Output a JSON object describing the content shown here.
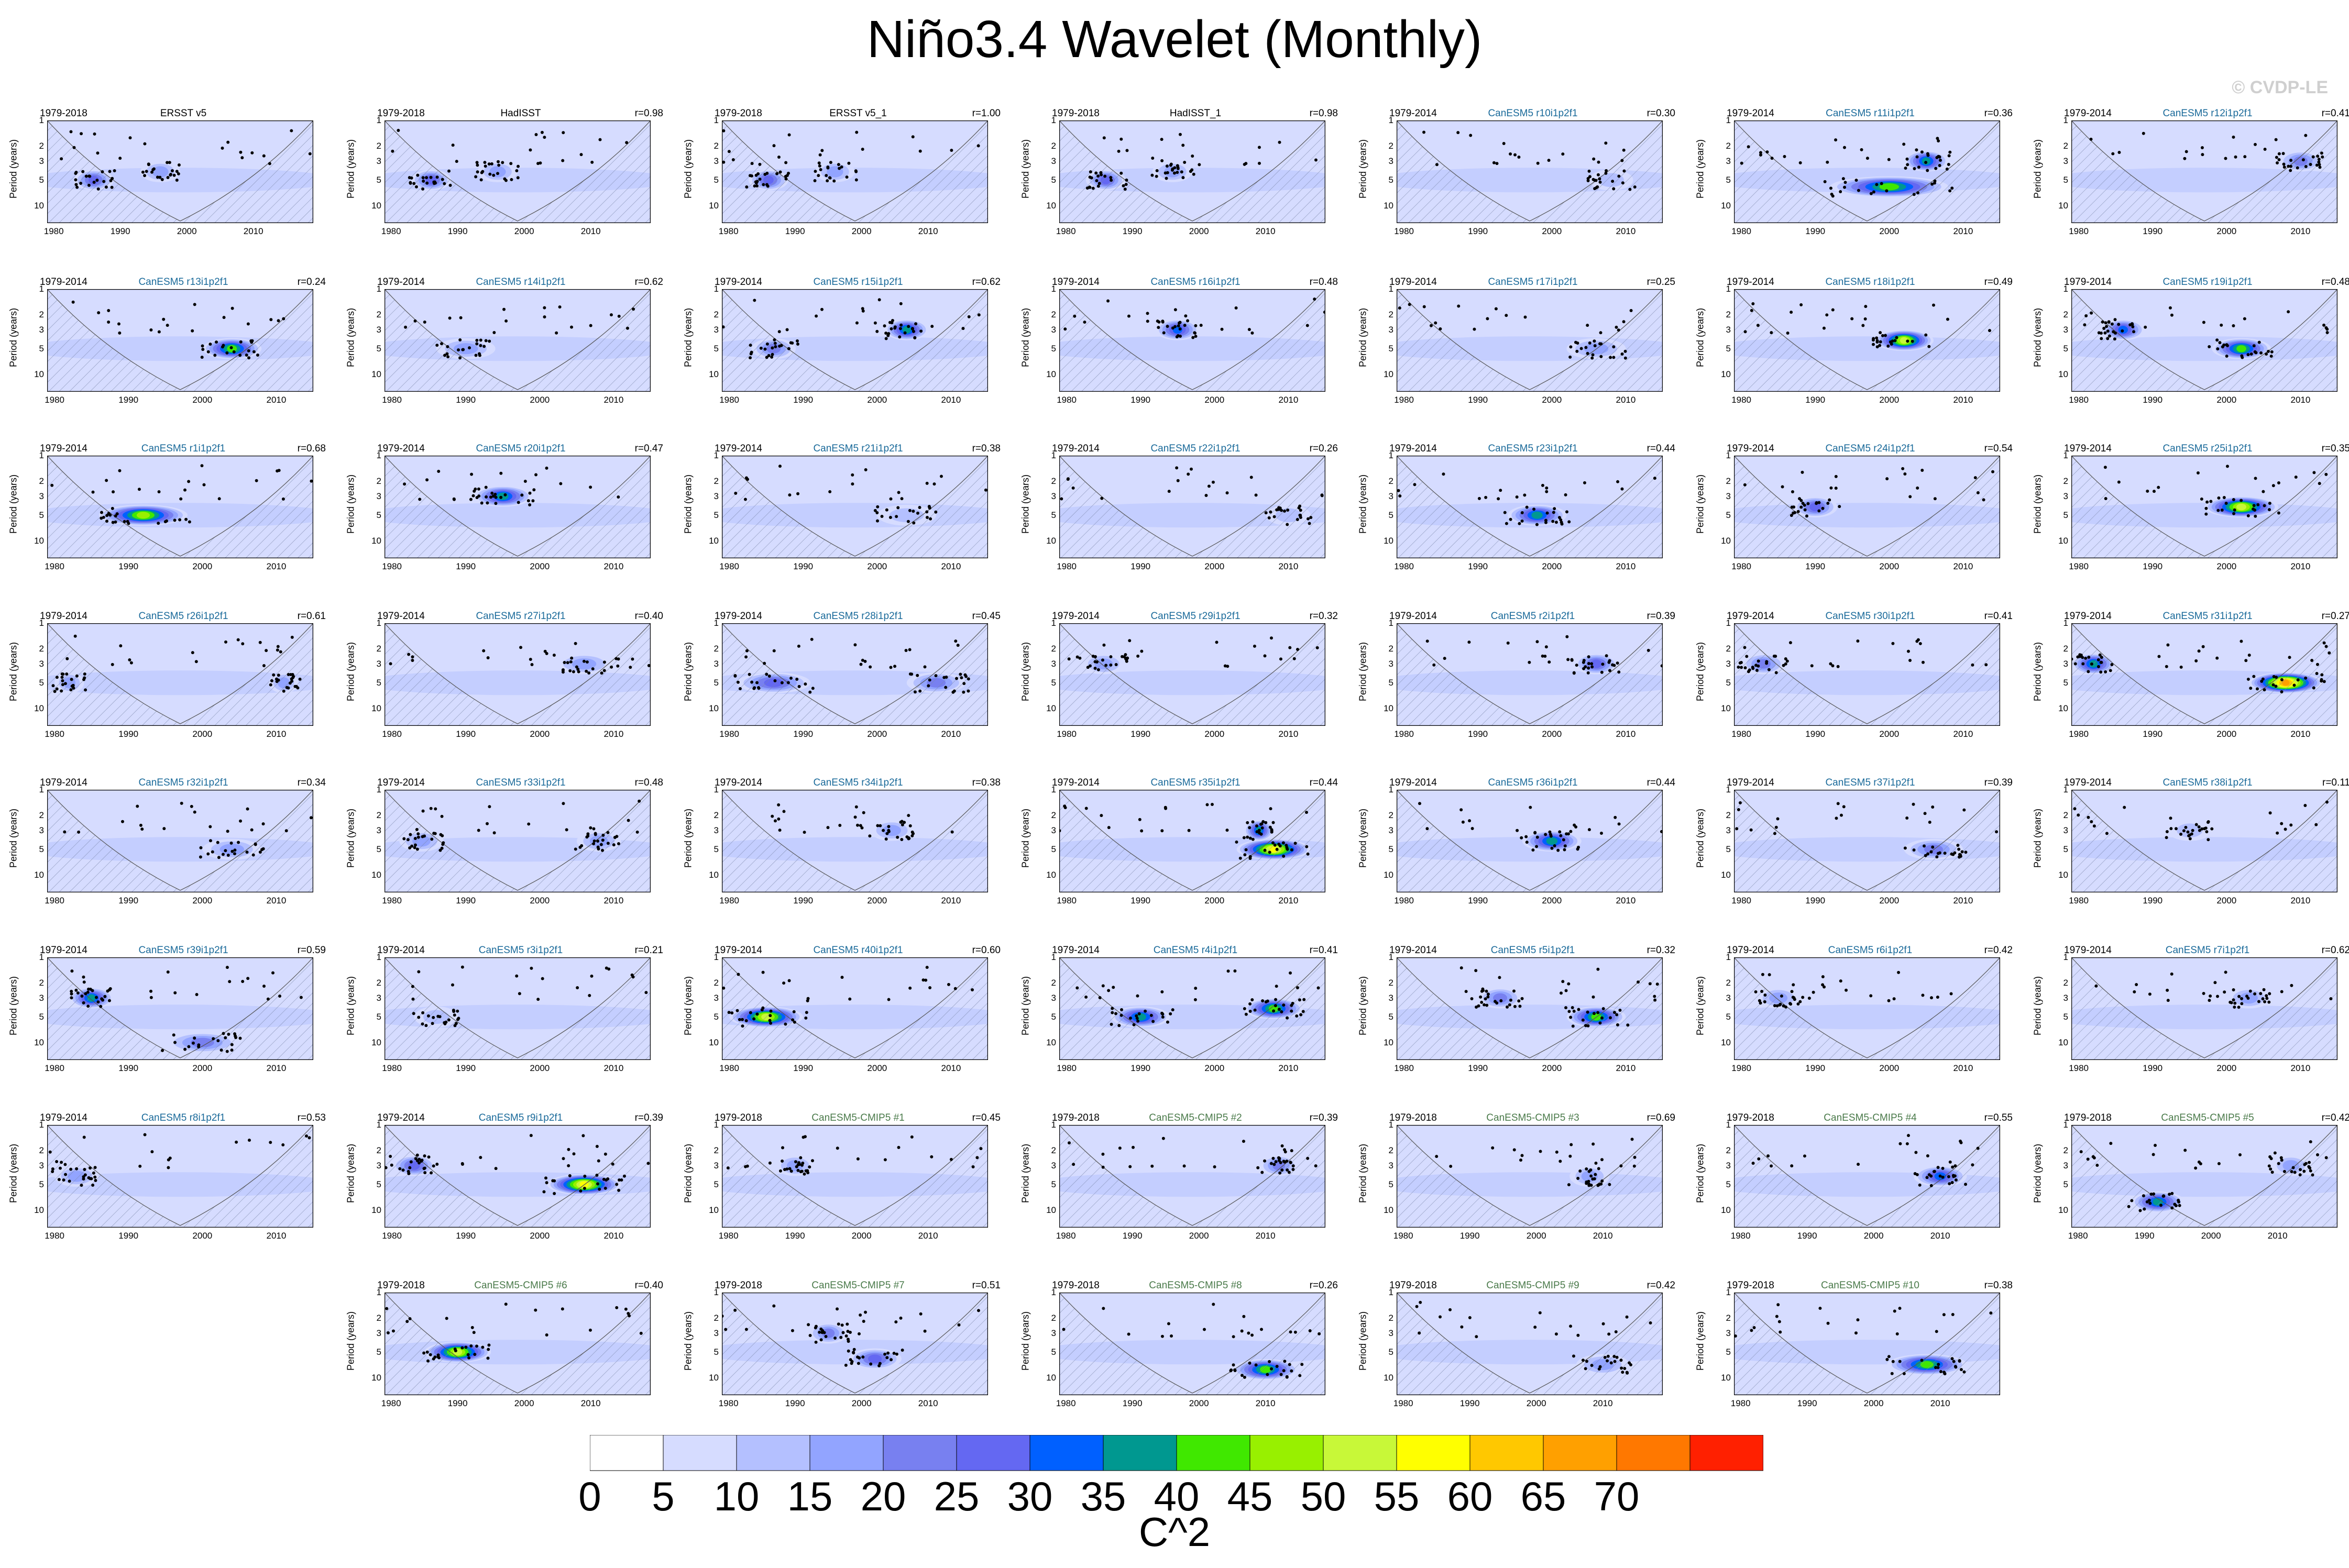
{
  "title": "Niño3.4 Wavelet (Monthly)",
  "watermark": "© CVDP-LE",
  "chart_data": {
    "type": "heatmap",
    "ylabel": "Period (years)",
    "yticks": [
      "1",
      "2",
      "3",
      "5",
      "10"
    ],
    "xticks": [
      "1980",
      "1990",
      "2000",
      "2010"
    ],
    "colorbar": {
      "label": "C^2",
      "ticks": [
        "0",
        "5",
        "10",
        "15",
        "20",
        "25",
        "30",
        "35",
        "40",
        "45",
        "50",
        "55",
        "60",
        "65",
        "70"
      ],
      "colors": [
        "#ffffff",
        "#d6dcff",
        "#b4c0ff",
        "#92a4ff",
        "#7880f0",
        "#6468f2",
        "#0060ff",
        "#009890",
        "#40e800",
        "#98f000",
        "#c8f838",
        "#ffff00",
        "#ffc800",
        "#ffa000",
        "#ff7800",
        "#ff2000"
      ]
    },
    "panels": [
      {
        "period": "1979-2018",
        "model": "ERSST v5",
        "r": "",
        "end": 2018,
        "blobs": [
          [
            1986,
            5,
            3,
            25
          ],
          [
            1996,
            4,
            3,
            15
          ]
        ]
      },
      {
        "period": "1979-2018",
        "model": "HadISST",
        "r": "r=0.98",
        "end": 2018,
        "blobs": [
          [
            1986,
            5,
            3,
            25
          ],
          [
            1996,
            4,
            3,
            15
          ]
        ]
      },
      {
        "period": "1979-2018",
        "model": "ERSST v5_1",
        "r": "r=1.00",
        "end": 2018,
        "blobs": [
          [
            1986,
            5,
            3,
            25
          ],
          [
            1996,
            4,
            3,
            15
          ]
        ]
      },
      {
        "period": "1979-2018",
        "model": "HadISST_1",
        "r": "r=0.98",
        "end": 2018,
        "blobs": [
          [
            1986,
            5,
            3,
            25
          ],
          [
            1996,
            4,
            3,
            15
          ]
        ]
      },
      {
        "period": "1979-2014",
        "model": "CanESM5 r10i1p2f1",
        "r": "r=0.30",
        "end": 2014,
        "blobs": [
          [
            2008,
            5,
            3,
            10
          ]
        ]
      },
      {
        "period": "1979-2014",
        "model": "CanESM5 r11i1p2f1",
        "r": "r=0.36",
        "end": 2014,
        "blobs": [
          [
            2000,
            6,
            8,
            40
          ],
          [
            2005,
            3,
            3,
            35
          ]
        ]
      },
      {
        "period": "1979-2014",
        "model": "CanESM5 r12i1p2f1",
        "r": "r=0.41",
        "end": 2014,
        "blobs": [
          [
            2010,
            3,
            3,
            20
          ]
        ]
      },
      {
        "period": "1979-2014",
        "model": "CanESM5 r13i1p2f1",
        "r": "r=0.24",
        "end": 2014,
        "blobs": [
          [
            2004,
            5,
            4,
            40
          ]
        ]
      },
      {
        "period": "1979-2014",
        "model": "CanESM5 r14i1p2f1",
        "r": "r=0.62",
        "end": 2014,
        "blobs": [
          [
            1990,
            5,
            4,
            15
          ]
        ]
      },
      {
        "period": "1979-2014",
        "model": "CanESM5 r15i1p2f1",
        "r": "r=0.62",
        "end": 2014,
        "blobs": [
          [
            2004,
            3,
            3,
            35
          ],
          [
            1986,
            5,
            3,
            20
          ]
        ]
      },
      {
        "period": "1979-2014",
        "model": "CanESM5 r16i1p2f1",
        "r": "r=0.48",
        "end": 2014,
        "blobs": [
          [
            1995,
            3,
            3,
            30
          ]
        ]
      },
      {
        "period": "1979-2014",
        "model": "CanESM5 r17i1p2f1",
        "r": "r=0.25",
        "end": 2014,
        "blobs": [
          [
            2006,
            5,
            4,
            15
          ]
        ]
      },
      {
        "period": "1979-2014",
        "model": "CanESM5 r18i1p2f1",
        "r": "r=0.49",
        "end": 2014,
        "blobs": [
          [
            2002,
            4,
            4,
            50
          ]
        ]
      },
      {
        "period": "1979-2014",
        "model": "CanESM5 r19i1p2f1",
        "r": "r=0.48",
        "end": 2014,
        "blobs": [
          [
            1986,
            3,
            3,
            30
          ],
          [
            2002,
            5,
            4,
            40
          ]
        ]
      },
      {
        "period": "1979-2014",
        "model": "CanESM5 r1i1p2f1",
        "r": "r=0.68",
        "end": 2014,
        "blobs": [
          [
            1992,
            5,
            6,
            45
          ]
        ]
      },
      {
        "period": "1979-2014",
        "model": "CanESM5 r20i1p2f1",
        "r": "r=0.47",
        "end": 2014,
        "blobs": [
          [
            1995,
            3,
            4,
            35
          ]
        ]
      },
      {
        "period": "1979-2014",
        "model": "CanESM5 r21i1p2f1",
        "r": "r=0.38",
        "end": 2014,
        "blobs": [
          [
            2004,
            5,
            4,
            10
          ]
        ]
      },
      {
        "period": "1979-2014",
        "model": "CanESM5 r22i1p2f1",
        "r": "r=0.26",
        "end": 2014,
        "blobs": [
          [
            2010,
            5,
            3,
            10
          ]
        ]
      },
      {
        "period": "1979-2014",
        "model": "CanESM5 r23i1p2f1",
        "r": "r=0.44",
        "end": 2014,
        "blobs": [
          [
            1998,
            5,
            4,
            35
          ]
        ]
      },
      {
        "period": "1979-2014",
        "model": "CanESM5 r24i1p2f1",
        "r": "r=0.54",
        "end": 2014,
        "blobs": [
          [
            1990,
            4,
            3,
            25
          ]
        ]
      },
      {
        "period": "1979-2014",
        "model": "CanESM5 r25i1p2f1",
        "r": "r=0.35",
        "end": 2014,
        "blobs": [
          [
            2002,
            4,
            5,
            50
          ]
        ]
      },
      {
        "period": "1979-2014",
        "model": "CanESM5 r26i1p2f1",
        "r": "r=0.61",
        "end": 2014,
        "blobs": [
          [
            1982,
            5,
            2,
            15
          ],
          [
            2011,
            5,
            2,
            15
          ]
        ]
      },
      {
        "period": "1979-2014",
        "model": "CanESM5 r27i1p2f1",
        "r": "r=0.40",
        "end": 2014,
        "blobs": [
          [
            2006,
            3,
            4,
            15
          ]
        ]
      },
      {
        "period": "1979-2014",
        "model": "CanESM5 r28i1p2f1",
        "r": "r=0.45",
        "end": 2014,
        "blobs": [
          [
            1986,
            5,
            5,
            25
          ],
          [
            2008,
            5,
            4,
            20
          ]
        ]
      },
      {
        "period": "1979-2014",
        "model": "CanESM5 r29i1p2f1",
        "r": "r=0.32",
        "end": 2014,
        "blobs": [
          [
            1985,
            3,
            3,
            15
          ]
        ]
      },
      {
        "period": "1979-2014",
        "model": "CanESM5 r2i1p2f1",
        "r": "r=0.39",
        "end": 2014,
        "blobs": [
          [
            2006,
            3,
            3,
            25
          ]
        ]
      },
      {
        "period": "1979-2014",
        "model": "CanESM5 r30i1p2f1",
        "r": "r=0.41",
        "end": 2014,
        "blobs": [
          [
            1983,
            3,
            3,
            20
          ]
        ]
      },
      {
        "period": "1979-2014",
        "model": "CanESM5 r31i1p2f1",
        "r": "r=0.27",
        "end": 2014,
        "blobs": [
          [
            2008,
            5,
            5,
            65
          ],
          [
            1982,
            3,
            3,
            35
          ]
        ]
      },
      {
        "period": "1979-2014",
        "model": "CanESM5 r32i1p2f1",
        "r": "r=0.34",
        "end": 2014,
        "blobs": [
          [
            2004,
            5,
            4,
            15
          ]
        ]
      },
      {
        "period": "1979-2014",
        "model": "CanESM5 r33i1p2f1",
        "r": "r=0.48",
        "end": 2014,
        "blobs": [
          [
            1984,
            4,
            3,
            15
          ],
          [
            2008,
            4,
            3,
            15
          ]
        ]
      },
      {
        "period": "1979-2014",
        "model": "CanESM5 r34i1p2f1",
        "r": "r=0.38",
        "end": 2014,
        "blobs": [
          [
            2002,
            3,
            3,
            15
          ]
        ]
      },
      {
        "period": "1979-2014",
        "model": "CanESM5 r35i1p2f1",
        "r": "r=0.44",
        "end": 2014,
        "blobs": [
          [
            2008,
            5,
            5,
            55
          ],
          [
            2006,
            3,
            2,
            35
          ]
        ]
      },
      {
        "period": "1979-2014",
        "model": "CanESM5 r36i1p2f1",
        "r": "r=0.44",
        "end": 2014,
        "blobs": [
          [
            2000,
            4,
            4,
            35
          ]
        ]
      },
      {
        "period": "1979-2014",
        "model": "CanESM5 r37i1p2f1",
        "r": "r=0.39",
        "end": 2014,
        "blobs": [
          [
            2006,
            5,
            4,
            20
          ]
        ]
      },
      {
        "period": "1979-2014",
        "model": "CanESM5 r38i1p2f1",
        "r": "r=0.11",
        "end": 2014,
        "blobs": [
          [
            1995,
            3,
            3,
            10
          ]
        ]
      },
      {
        "period": "1979-2014",
        "model": "CanESM5 r39i1p2f1",
        "r": "r=0.59",
        "end": 2014,
        "blobs": [
          [
            1985,
            3,
            3,
            35
          ],
          [
            2000,
            10,
            5,
            20
          ]
        ]
      },
      {
        "period": "1979-2014",
        "model": "CanESM5 r3i1p2f1",
        "r": "r=0.21",
        "end": 2014,
        "blobs": [
          [
            1986,
            5,
            3,
            10
          ]
        ]
      },
      {
        "period": "1979-2014",
        "model": "CanESM5 r40i1p2f1",
        "r": "r=0.60",
        "end": 2014,
        "blobs": [
          [
            1985,
            5,
            5,
            50
          ]
        ]
      },
      {
        "period": "1979-2014",
        "model": "CanESM5 r4i1p2f1",
        "r": "r=0.41",
        "end": 2014,
        "blobs": [
          [
            1990,
            5,
            4,
            35
          ],
          [
            2008,
            4,
            4,
            40
          ]
        ]
      },
      {
        "period": "1979-2014",
        "model": "CanESM5 r5i1p2f1",
        "r": "r=0.32",
        "end": 2014,
        "blobs": [
          [
            2006,
            5,
            4,
            40
          ],
          [
            1993,
            3,
            3,
            20
          ]
        ]
      },
      {
        "period": "1979-2014",
        "model": "CanESM5 r6i1p2f1",
        "r": "r=0.42",
        "end": 2014,
        "blobs": [
          [
            1985,
            3,
            3,
            15
          ]
        ]
      },
      {
        "period": "1979-2014",
        "model": "CanESM5 r7i1p2f1",
        "r": "r=0.62",
        "end": 2014,
        "blobs": [
          [
            2003,
            3,
            3,
            15
          ]
        ]
      },
      {
        "period": "1979-2014",
        "model": "CanESM5 r8i1p2f1",
        "r": "r=0.53",
        "end": 2014,
        "blobs": [
          [
            1983,
            4,
            3,
            15
          ]
        ]
      },
      {
        "period": "1979-2014",
        "model": "CanESM5 r9i1p2f1",
        "r": "r=0.39",
        "end": 2014,
        "blobs": [
          [
            2006,
            5,
            5,
            55
          ],
          [
            1983,
            3,
            3,
            25
          ]
        ]
      },
      {
        "period": "1979-2018",
        "model": "CanESM5-CMIP5 #1",
        "r": "r=0.45",
        "end": 2018,
        "blobs": [
          [
            1990,
            3,
            3,
            15
          ]
        ]
      },
      {
        "period": "1979-2018",
        "model": "CanESM5-CMIP5 #2",
        "r": "r=0.39",
        "end": 2018,
        "blobs": [
          [
            2012,
            3,
            3,
            20
          ]
        ]
      },
      {
        "period": "1979-2018",
        "model": "CanESM5-CMIP5 #3",
        "r": "r=0.69",
        "end": 2018,
        "blobs": [
          [
            2008,
            4,
            3,
            15
          ]
        ]
      },
      {
        "period": "1979-2018",
        "model": "CanESM5-CMIP5 #4",
        "r": "r=0.55",
        "end": 2018,
        "blobs": [
          [
            2010,
            4,
            4,
            30
          ]
        ]
      },
      {
        "period": "1979-2018",
        "model": "CanESM5-CMIP5 #5",
        "r": "r=0.42",
        "end": 2018,
        "blobs": [
          [
            1992,
            8,
            4,
            35
          ],
          [
            2012,
            3,
            3,
            15
          ]
        ]
      },
      {
        "period": "1979-2018",
        "model": "CanESM5-CMIP5 #6",
        "r": "r=0.40",
        "end": 2018,
        "blobs": [
          [
            1990,
            5,
            5,
            50
          ]
        ]
      },
      {
        "period": "1979-2018",
        "model": "CanESM5-CMIP5 #7",
        "r": "r=0.51",
        "end": 2018,
        "blobs": [
          [
            2002,
            6,
            4,
            25
          ],
          [
            1995,
            3,
            3,
            20
          ]
        ]
      },
      {
        "period": "1979-2018",
        "model": "CanESM5-CMIP5 #8",
        "r": "r=0.26",
        "end": 2018,
        "blobs": [
          [
            2010,
            8,
            5,
            40
          ]
        ]
      },
      {
        "period": "1979-2018",
        "model": "CanESM5-CMIP5 #9",
        "r": "r=0.42",
        "end": 2018,
        "blobs": [
          [
            2010,
            7,
            4,
            15
          ]
        ]
      },
      {
        "period": "1979-2018",
        "model": "CanESM5-CMIP5 #10",
        "r": "r=0.38",
        "end": 2018,
        "blobs": [
          [
            2008,
            7,
            6,
            40
          ]
        ]
      }
    ]
  }
}
